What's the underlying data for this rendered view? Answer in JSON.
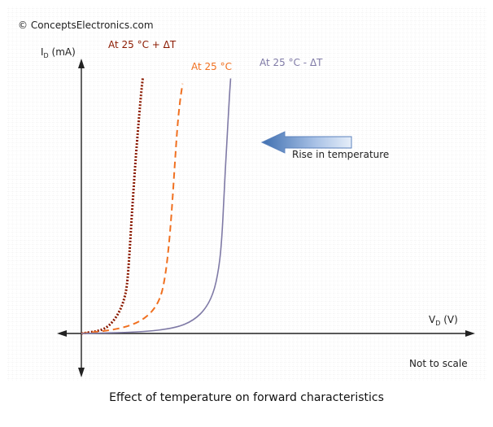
{
  "chart_data": {
    "type": "line",
    "title": "Effect of temperature on forward characteristics",
    "watermark": "© ConceptsElectronics.com",
    "xlabel": {
      "main": "V",
      "sub": "D",
      "unit": " (V)"
    },
    "ylabel": {
      "main": "I",
      "sub": "D",
      "unit": " (mA)"
    },
    "xlim": [
      0,
      10
    ],
    "ylim": [
      0,
      10
    ],
    "grid": true,
    "note": "Not to scale",
    "annotation": {
      "text": "Rise in temperature",
      "direction": "left"
    },
    "series": [
      {
        "name": "At 25 °C + ΔT",
        "color": "#8b1a00",
        "style": "dashed-dense",
        "x": [
          0.0,
          0.8,
          1.2,
          1.55,
          1.8,
          1.95,
          2.05,
          2.15,
          2.3,
          2.45,
          2.55,
          2.62
        ],
        "y": [
          0.0,
          0.1,
          0.3,
          0.7,
          1.2,
          1.8,
          3.0,
          4.5,
          6.5,
          8.2,
          9.2,
          9.8
        ]
      },
      {
        "name": "At 25 °C",
        "color": "#f07020",
        "style": "dashed",
        "x": [
          0.0,
          1.5,
          2.4,
          3.0,
          3.35,
          3.55,
          3.72,
          3.85,
          3.98,
          4.1,
          4.22,
          4.32
        ],
        "y": [
          0.0,
          0.15,
          0.4,
          0.8,
          1.3,
          2.0,
          3.2,
          4.6,
          6.4,
          8.0,
          9.0,
          9.6
        ]
      },
      {
        "name": "At 25 °C - ΔT",
        "color": "#7f7aa6",
        "style": "solid",
        "x": [
          0.0,
          2.5,
          4.0,
          4.8,
          5.35,
          5.7,
          5.92,
          6.02,
          6.1,
          6.2,
          6.3,
          6.37
        ],
        "y": [
          0.0,
          0.05,
          0.2,
          0.5,
          1.0,
          1.7,
          2.8,
          4.0,
          5.5,
          7.2,
          8.8,
          9.8
        ]
      }
    ]
  }
}
